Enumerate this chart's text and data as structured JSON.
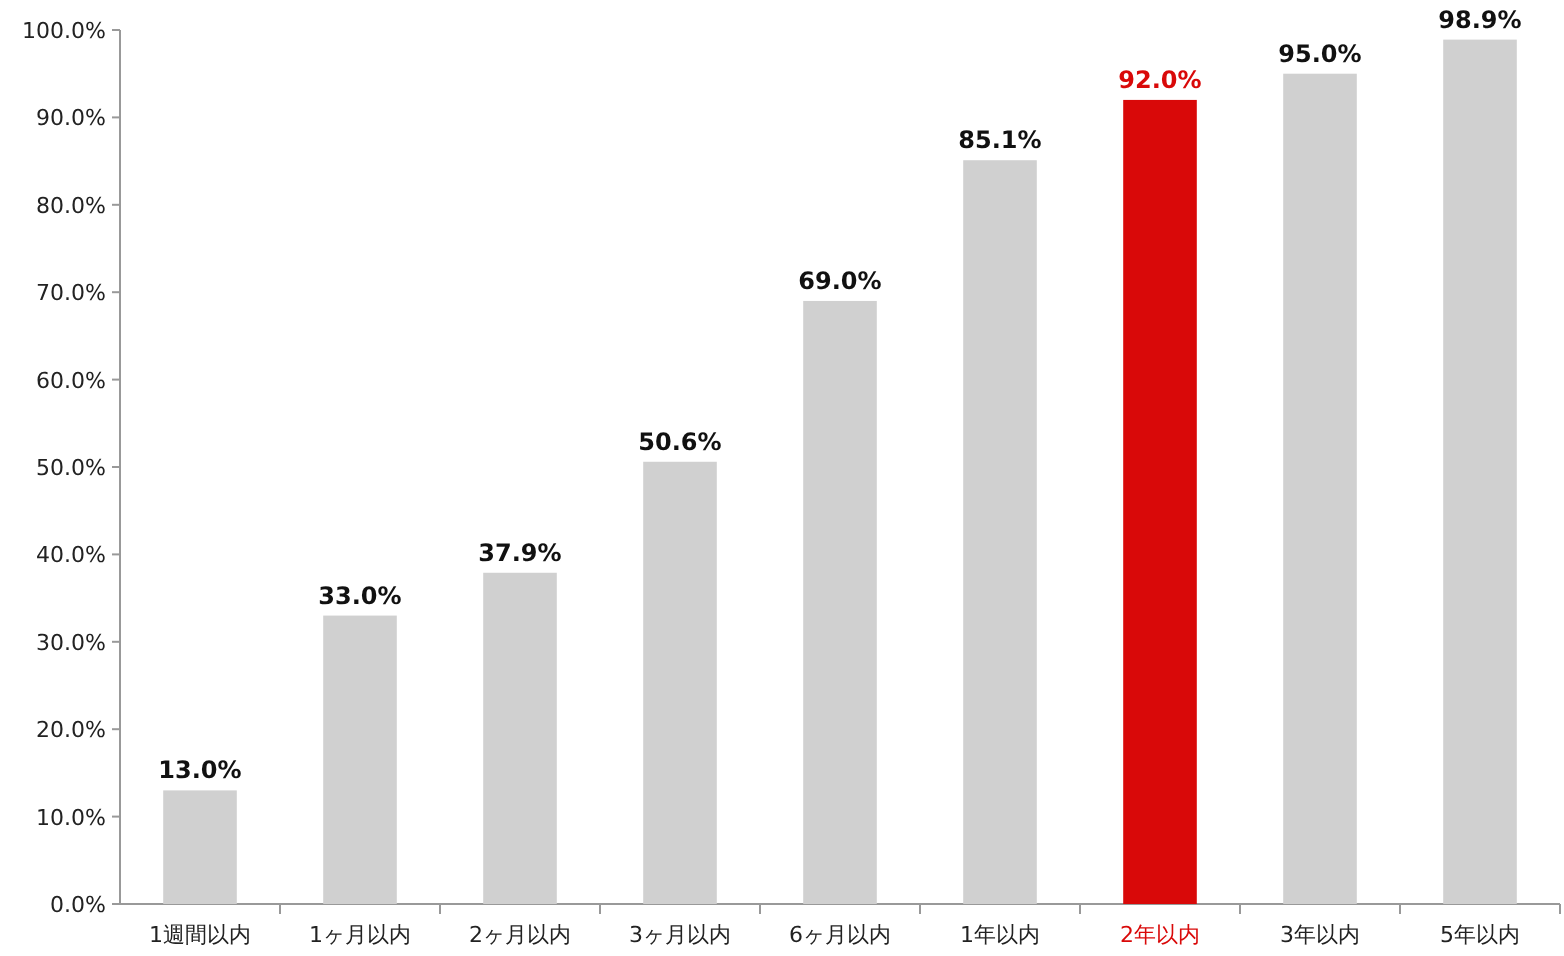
{
  "chart_data": {
    "type": "bar",
    "categories": [
      "1週間以内",
      "1ヶ月以内",
      "2ヶ月以内",
      "3ヶ月以内",
      "6ヶ月以内",
      "1年以内",
      "2年以内",
      "3年以内",
      "5年以内"
    ],
    "values": [
      13.0,
      33.0,
      37.9,
      50.6,
      69.0,
      85.1,
      92.0,
      95.0,
      98.9
    ],
    "colors": [
      "#d0d0d0",
      "#d0d0d0",
      "#d0d0d0",
      "#d0d0d0",
      "#d0d0d0",
      "#d0d0d0",
      "#d90909",
      "#d0d0d0",
      "#d0d0d0"
    ],
    "ylim": [
      0,
      100
    ],
    "yticks": [
      {
        "value": 0,
        "label": "0.0%"
      },
      {
        "value": 10,
        "label": "10.0%"
      },
      {
        "value": 20,
        "label": "20.0%"
      },
      {
        "value": 30,
        "label": "30.0%"
      },
      {
        "value": 40,
        "label": "40.0%"
      },
      {
        "value": 50,
        "label": "50.0%"
      },
      {
        "value": 60,
        "label": "60.0%"
      },
      {
        "value": 70,
        "label": "70.0%"
      },
      {
        "value": 80,
        "label": "80.0%"
      },
      {
        "value": 90,
        "label": "90.0%"
      },
      {
        "value": 100,
        "label": "100.0%"
      }
    ],
    "value_labels": [
      "13.0%",
      "33.0%",
      "37.9%",
      "50.6%",
      "69.0%",
      "85.1%",
      "92.0%",
      "95.0%",
      "98.9%"
    ]
  }
}
